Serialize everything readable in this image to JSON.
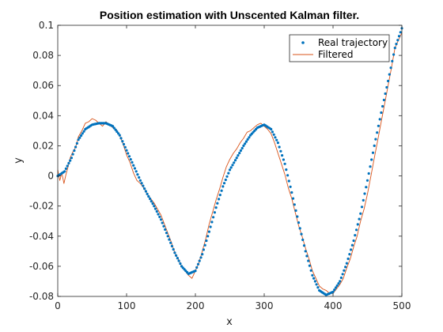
{
  "chart_data": {
    "type": "line",
    "title": "Position estimation with Unscented Kalman filter.",
    "xlabel": "x",
    "ylabel": "y",
    "xlim": [
      0,
      500
    ],
    "ylim": [
      -0.08,
      0.1
    ],
    "xticks": [
      "0",
      "100",
      "200",
      "300",
      "400",
      "500"
    ],
    "yticks": [
      "0.1",
      "0.08",
      "0.06",
      "0.04",
      "0.02",
      "0",
      "-0.02",
      "-0.04",
      "-0.06",
      "-0.08"
    ],
    "grid": false,
    "legend_position": "top-right",
    "series": [
      {
        "name": "Real trajectory",
        "style": "dots",
        "color": "#0072BD",
        "x": [
          0,
          10,
          20,
          30,
          40,
          50,
          60,
          70,
          80,
          90,
          100,
          110,
          120,
          130,
          140,
          150,
          160,
          170,
          180,
          190,
          200,
          210,
          220,
          230,
          240,
          250,
          260,
          270,
          280,
          290,
          300,
          310,
          320,
          330,
          340,
          350,
          360,
          370,
          380,
          390,
          400,
          410,
          420,
          430,
          440,
          450,
          460,
          470,
          480,
          490,
          500
        ],
        "y": [
          0.0,
          0.003,
          0.012,
          0.024,
          0.031,
          0.034,
          0.035,
          0.035,
          0.033,
          0.027,
          0.017,
          0.007,
          -0.003,
          -0.012,
          -0.02,
          -0.029,
          -0.04,
          -0.051,
          -0.06,
          -0.065,
          -0.063,
          -0.052,
          -0.037,
          -0.021,
          -0.007,
          0.004,
          0.012,
          0.02,
          0.027,
          0.032,
          0.034,
          0.031,
          0.022,
          0.008,
          -0.011,
          -0.031,
          -0.05,
          -0.066,
          -0.076,
          -0.079,
          -0.077,
          -0.07,
          -0.058,
          -0.043,
          -0.025,
          -0.003,
          0.02,
          0.042,
          0.063,
          0.085,
          0.098
        ]
      },
      {
        "name": "Filtered",
        "style": "line",
        "color": "#D95319",
        "x": [
          0,
          3,
          6,
          9,
          12,
          15,
          18,
          22,
          26,
          30,
          35,
          40,
          45,
          50,
          55,
          60,
          65,
          70,
          75,
          80,
          85,
          90,
          95,
          100,
          105,
          110,
          115,
          120,
          125,
          130,
          135,
          140,
          145,
          150,
          155,
          160,
          165,
          170,
          175,
          180,
          185,
          190,
          195,
          200,
          205,
          210,
          215,
          220,
          225,
          230,
          235,
          240,
          245,
          250,
          255,
          260,
          265,
          270,
          275,
          280,
          285,
          290,
          295,
          300,
          305,
          310,
          315,
          320,
          325,
          330,
          335,
          340,
          345,
          350,
          355,
          360,
          365,
          370,
          375,
          380,
          385,
          390,
          395,
          400,
          405,
          410,
          415,
          420,
          425,
          430,
          435,
          440,
          445,
          450,
          455,
          460,
          465,
          470,
          475,
          480,
          485,
          490,
          495,
          500
        ],
        "y": [
          0.004,
          -0.003,
          0.002,
          -0.005,
          0.001,
          0.006,
          0.012,
          0.016,
          0.019,
          0.026,
          0.03,
          0.035,
          0.036,
          0.038,
          0.037,
          0.035,
          0.033,
          0.036,
          0.034,
          0.032,
          0.031,
          0.027,
          0.021,
          0.014,
          0.009,
          0.002,
          -0.003,
          -0.005,
          -0.008,
          -0.012,
          -0.015,
          -0.018,
          -0.022,
          -0.026,
          -0.032,
          -0.038,
          -0.044,
          -0.051,
          -0.055,
          -0.06,
          -0.063,
          -0.066,
          -0.068,
          -0.063,
          -0.058,
          -0.05,
          -0.042,
          -0.032,
          -0.024,
          -0.016,
          -0.009,
          -0.001,
          0.006,
          0.011,
          0.015,
          0.018,
          0.022,
          0.025,
          0.029,
          0.03,
          0.032,
          0.034,
          0.035,
          0.033,
          0.031,
          0.028,
          0.022,
          0.015,
          0.008,
          0.001,
          -0.008,
          -0.015,
          -0.024,
          -0.033,
          -0.04,
          -0.048,
          -0.055,
          -0.063,
          -0.068,
          -0.073,
          -0.075,
          -0.076,
          -0.078,
          -0.078,
          -0.075,
          -0.072,
          -0.068,
          -0.061,
          -0.055,
          -0.047,
          -0.04,
          -0.03,
          -0.022,
          -0.012,
          0.0,
          0.012,
          0.024,
          0.036,
          0.048,
          0.06,
          0.072,
          0.085,
          0.09,
          0.095
        ]
      }
    ]
  }
}
